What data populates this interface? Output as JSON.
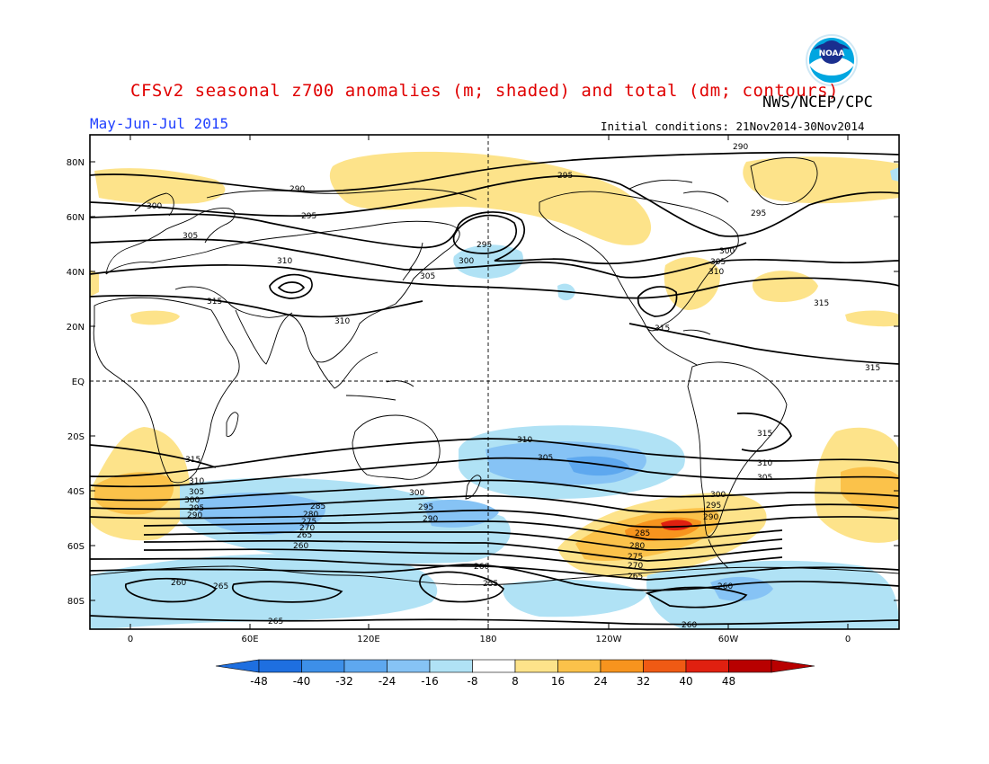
{
  "title": "CFSv2 seasonal z700 anomalies (m; shaded) and total (dm; contours)",
  "agency": "NWS/NCEP/CPC",
  "logo_text": "NOAA",
  "period": "May-Jun-Jul 2015",
  "initial_conditions": "Initial conditions: 21Nov2014-30Nov2014",
  "lat_ticks": [
    "80N",
    "60N",
    "40N",
    "20N",
    "EQ",
    "20S",
    "40S",
    "60S",
    "80S"
  ],
  "lon_ticks": [
    "0",
    "60E",
    "120E",
    "180",
    "120W",
    "60W",
    "0"
  ],
  "colorbar": {
    "labels": [
      "-48",
      "-40",
      "-32",
      "-24",
      "-16",
      "-8",
      "8",
      "16",
      "24",
      "32",
      "40",
      "48"
    ],
    "colors": [
      "#1e6fe0",
      "#3d8fe8",
      "#5ea8ef",
      "#86c3f5",
      "#b0e2f5",
      "#ffffff",
      "#fde38a",
      "#fbc24a",
      "#f7941e",
      "#ef5a14",
      "#e02010",
      "#b80000"
    ],
    "arrow_left_color": "#1e6fe0",
    "arrow_right_color": "#b80000"
  },
  "contour_labels": [
    "290",
    "295",
    "300",
    "305",
    "310",
    "315",
    "310",
    "305",
    "300",
    "295",
    "290",
    "285",
    "280",
    "275",
    "270",
    "265",
    "260",
    "255"
  ],
  "colors": {
    "title": "#e00000",
    "period": "#1f3fff",
    "positive_light": "#fde38a",
    "positive_mid": "#fbc24a",
    "positive_strong": "#f7941e",
    "positive_max": "#e02010",
    "negative_light": "#b0e2f5",
    "negative_mid": "#86c3f5",
    "negative_strong": "#5ea8ef"
  }
}
